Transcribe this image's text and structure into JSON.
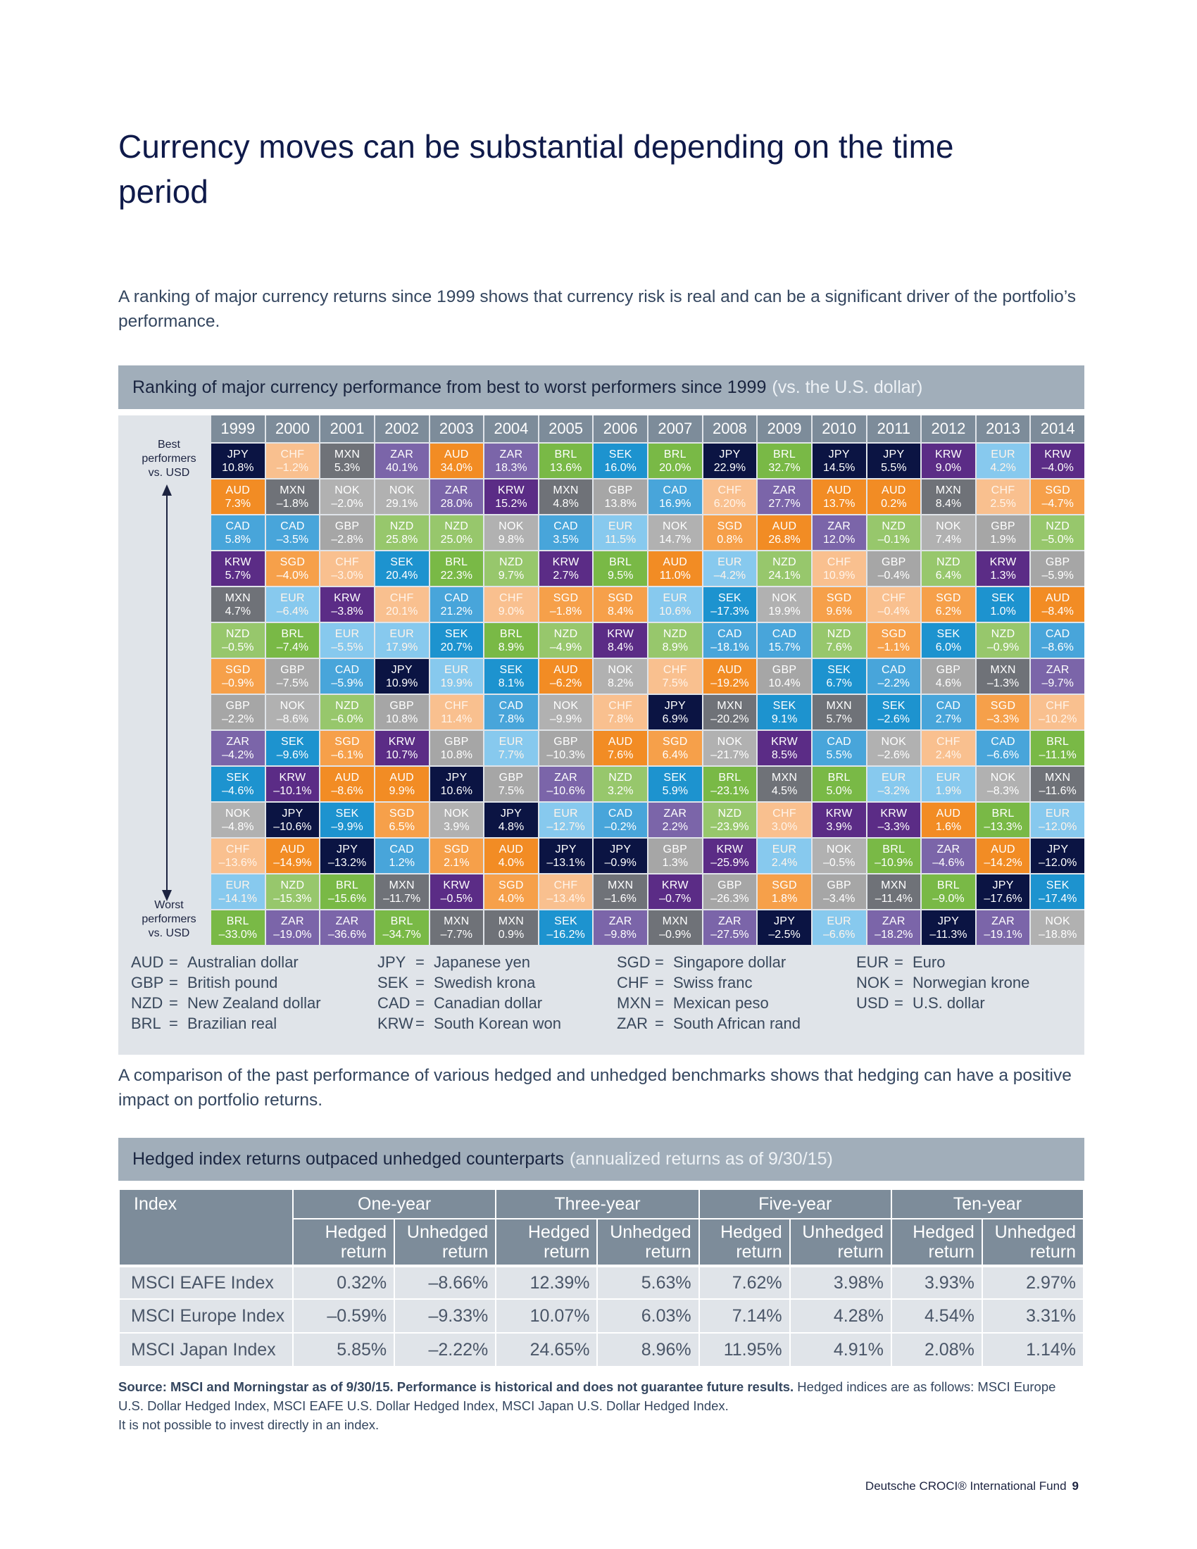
{
  "title": "Currency moves can be substantial depending on the time period",
  "intro_text": "A ranking of major currency returns since 1999 shows that currency risk is real and can be a significant driver of the portfolio’s performance.",
  "ranking": {
    "title": "Ranking of major currency performance from best to worst performers since 1999",
    "subtitle": "(vs. the U.S. dollar)",
    "best_label": "Best performers vs. USD",
    "worst_label": "Worst performers vs. USD",
    "years": [
      "1999",
      "2000",
      "2001",
      "2002",
      "2003",
      "2004",
      "2005",
      "2006",
      "2007",
      "2008",
      "2009",
      "2010",
      "2011",
      "2012",
      "2013",
      "2014"
    ],
    "colors": {
      "JPY": "#0b1443",
      "CHF": "#f9c08f",
      "MXN": "#6f7278",
      "ZAR": "#7b65a9",
      "AUD": "#f28c24",
      "BRL": "#79b946",
      "SEK": "#1d93cf",
      "KRW": "#5b2c86",
      "EUR": "#87c9ee",
      "NOK": "#b1b1b1",
      "GBP": "#a6a6a6",
      "CAD": "#48a5da",
      "NZD": "#97c76c",
      "SGD": "#f6a04a"
    },
    "light_text": [
      "CHF",
      "EUR"
    ],
    "columns": [
      [
        [
          "JPY",
          "10.8%"
        ],
        [
          "AUD",
          "7.3%"
        ],
        [
          "CAD",
          "5.8%"
        ],
        [
          "KRW",
          "5.7%"
        ],
        [
          "MXN",
          "4.7%"
        ],
        [
          "NZD",
          "–0.5%"
        ],
        [
          "SGD",
          "–0.9%"
        ],
        [
          "GBP",
          "–2.2%"
        ],
        [
          "ZAR",
          "–4.2%"
        ],
        [
          "SEK",
          "–4.6%"
        ],
        [
          "NOK",
          "–4.8%"
        ],
        [
          "CHF",
          "–13.6%"
        ],
        [
          "EUR",
          "–14.1%"
        ],
        [
          "BRL",
          "–33.0%"
        ]
      ],
      [
        [
          "CHF",
          "–1.2%"
        ],
        [
          "MXN",
          "–1.8%"
        ],
        [
          "CAD",
          "–3.5%"
        ],
        [
          "SGD",
          "–4.0%"
        ],
        [
          "EUR",
          "–6.4%"
        ],
        [
          "BRL",
          "–7.4%"
        ],
        [
          "GBP",
          "–7.5%"
        ],
        [
          "NOK",
          "–8.6%"
        ],
        [
          "SEK",
          "–9.6%"
        ],
        [
          "KRW",
          "–10.1%"
        ],
        [
          "JPY",
          "–10.6%"
        ],
        [
          "AUD",
          "–14.9%"
        ],
        [
          "NZD",
          "–15.3%"
        ],
        [
          "ZAR",
          "–19.0%"
        ]
      ],
      [
        [
          "MXN",
          "5.3%"
        ],
        [
          "NOK",
          "–2.0%"
        ],
        [
          "GBP",
          "–2.8%"
        ],
        [
          "CHF",
          "–3.0%"
        ],
        [
          "KRW",
          "–3.8%"
        ],
        [
          "EUR",
          "–5.5%"
        ],
        [
          "CAD",
          "–5.9%"
        ],
        [
          "NZD",
          "–6.0%"
        ],
        [
          "SGD",
          "–6.1%"
        ],
        [
          "AUD",
          "–8.6%"
        ],
        [
          "SEK",
          "–9.9%"
        ],
        [
          "JPY",
          "–13.2%"
        ],
        [
          "BRL",
          "–15.6%"
        ],
        [
          "ZAR",
          "–36.6%"
        ]
      ],
      [
        [
          "ZAR",
          "40.1%"
        ],
        [
          "NOK",
          "29.1%"
        ],
        [
          "NZD",
          "25.8%"
        ],
        [
          "SEK",
          "20.4%"
        ],
        [
          "CHF",
          "20.1%"
        ],
        [
          "EUR",
          "17.9%"
        ],
        [
          "JPY",
          "10.9%"
        ],
        [
          "GBP",
          "10.8%"
        ],
        [
          "KRW",
          "10.7%"
        ],
        [
          "AUD",
          "9.9%"
        ],
        [
          "SGD",
          "6.5%"
        ],
        [
          "CAD",
          "1.2%"
        ],
        [
          "MXN",
          "–11.7%"
        ],
        [
          "BRL",
          "–34.7%"
        ]
      ],
      [
        [
          "AUD",
          "34.0%"
        ],
        [
          "ZAR",
          "28.0%"
        ],
        [
          "NZD",
          "25.0%"
        ],
        [
          "BRL",
          "22.3%"
        ],
        [
          "CAD",
          "21.2%"
        ],
        [
          "SEK",
          "20.7%"
        ],
        [
          "EUR",
          "19.9%"
        ],
        [
          "CHF",
          "11.4%"
        ],
        [
          "GBP",
          "10.8%"
        ],
        [
          "JPY",
          "10.6%"
        ],
        [
          "NOK",
          "3.9%"
        ],
        [
          "SGD",
          "2.1%"
        ],
        [
          "KRW",
          "–0.5%"
        ],
        [
          "MXN",
          "–7.7%"
        ]
      ],
      [
        [
          "ZAR",
          "18.3%"
        ],
        [
          "KRW",
          "15.2%"
        ],
        [
          "NOK",
          "9.8%"
        ],
        [
          "NZD",
          "9.7%"
        ],
        [
          "CHF",
          "9.0%"
        ],
        [
          "BRL",
          "8.9%"
        ],
        [
          "SEK",
          "8.1%"
        ],
        [
          "CAD",
          "7.8%"
        ],
        [
          "EUR",
          "7.7%"
        ],
        [
          "GBP",
          "7.5%"
        ],
        [
          "JPY",
          "4.8%"
        ],
        [
          "AUD",
          "4.0%"
        ],
        [
          "SGD",
          "4.0%"
        ],
        [
          "MXN",
          "0.9%"
        ]
      ],
      [
        [
          "BRL",
          "13.6%"
        ],
        [
          "MXN",
          "4.8%"
        ],
        [
          "CAD",
          "3.5%"
        ],
        [
          "KRW",
          "2.7%"
        ],
        [
          "SGD",
          "–1.8%"
        ],
        [
          "NZD",
          "–4.9%"
        ],
        [
          "AUD",
          "–6.2%"
        ],
        [
          "NOK",
          "–9.9%"
        ],
        [
          "GBP",
          "–10.3%"
        ],
        [
          "ZAR",
          "–10.6%"
        ],
        [
          "EUR",
          "–12.7%"
        ],
        [
          "JPY",
          "–13.1%"
        ],
        [
          "CHF",
          "–13.4%"
        ],
        [
          "SEK",
          "–16.2%"
        ]
      ],
      [
        [
          "SEK",
          "16.0%"
        ],
        [
          "GBP",
          "13.8%"
        ],
        [
          "EUR",
          "11.5%"
        ],
        [
          "BRL",
          "9.5%"
        ],
        [
          "SGD",
          "8.4%"
        ],
        [
          "KRW",
          "8.4%"
        ],
        [
          "NOK",
          "8.2%"
        ],
        [
          "CHF",
          "7.8%"
        ],
        [
          "AUD",
          "7.6%"
        ],
        [
          "NZD",
          "3.2%"
        ],
        [
          "CAD",
          "–0.2%"
        ],
        [
          "JPY",
          "–0.9%"
        ],
        [
          "MXN",
          "–1.6%"
        ],
        [
          "ZAR",
          "–9.8%"
        ]
      ],
      [
        [
          "BRL",
          "20.0%"
        ],
        [
          "CAD",
          "16.9%"
        ],
        [
          "NOK",
          "14.7%"
        ],
        [
          "AUD",
          "11.0%"
        ],
        [
          "EUR",
          "10.6%"
        ],
        [
          "NZD",
          "8.9%"
        ],
        [
          "CHF",
          "7.5%"
        ],
        [
          "JPY",
          "6.9%"
        ],
        [
          "SGD",
          "6.4%"
        ],
        [
          "SEK",
          "5.9%"
        ],
        [
          "ZAR",
          "2.2%"
        ],
        [
          "GBP",
          "1.3%"
        ],
        [
          "KRW",
          "–0.7%"
        ],
        [
          "MXN",
          "–0.9%"
        ]
      ],
      [
        [
          "JPY",
          "22.9%"
        ],
        [
          "CHF",
          "6.20%"
        ],
        [
          "SGD",
          "0.8%"
        ],
        [
          "EUR",
          "–4.2%"
        ],
        [
          "SEK",
          "–17.3%"
        ],
        [
          "CAD",
          "–18.1%"
        ],
        [
          "AUD",
          "–19.2%"
        ],
        [
          "MXN",
          "–20.2%"
        ],
        [
          "NOK",
          "–21.7%"
        ],
        [
          "BRL",
          "–23.1%"
        ],
        [
          "NZD",
          "–23.9%"
        ],
        [
          "KRW",
          "–25.9%"
        ],
        [
          "GBP",
          "–26.3%"
        ],
        [
          "ZAR",
          "–27.5%"
        ]
      ],
      [
        [
          "BRL",
          "32.7%"
        ],
        [
          "ZAR",
          "27.7%"
        ],
        [
          "AUD",
          "26.8%"
        ],
        [
          "NZD",
          "24.1%"
        ],
        [
          "NOK",
          "19.9%"
        ],
        [
          "CAD",
          "15.7%"
        ],
        [
          "GBP",
          "10.4%"
        ],
        [
          "SEK",
          "9.1%"
        ],
        [
          "KRW",
          "8.5%"
        ],
        [
          "MXN",
          "4.5%"
        ],
        [
          "CHF",
          "3.0%"
        ],
        [
          "EUR",
          "2.4%"
        ],
        [
          "SGD",
          "1.8%"
        ],
        [
          "JPY",
          "–2.5%"
        ]
      ],
      [
        [
          "JPY",
          "14.5%"
        ],
        [
          "AUD",
          "13.7%"
        ],
        [
          "ZAR",
          "12.0%"
        ],
        [
          "CHF",
          "10.9%"
        ],
        [
          "SGD",
          "9.6%"
        ],
        [
          "NZD",
          "7.6%"
        ],
        [
          "SEK",
          "6.7%"
        ],
        [
          "MXN",
          "5.7%"
        ],
        [
          "CAD",
          "5.5%"
        ],
        [
          "BRL",
          "5.0%"
        ],
        [
          "KRW",
          "3.9%"
        ],
        [
          "NOK",
          "–0.5%"
        ],
        [
          "GBP",
          "–3.4%"
        ],
        [
          "EUR",
          "–6.6%"
        ]
      ],
      [
        [
          "JPY",
          "5.5%"
        ],
        [
          "AUD",
          "0.2%"
        ],
        [
          "NZD",
          "–0.1%"
        ],
        [
          "GBP",
          "–0.4%"
        ],
        [
          "CHF",
          "–0.4%"
        ],
        [
          "SGD",
          "–1.1%"
        ],
        [
          "CAD",
          "–2.2%"
        ],
        [
          "SEK",
          "–2.6%"
        ],
        [
          "NOK",
          "–2.6%"
        ],
        [
          "EUR",
          "–3.2%"
        ],
        [
          "KRW",
          "–3.3%"
        ],
        [
          "BRL",
          "–10.9%"
        ],
        [
          "MXN",
          "–11.4%"
        ],
        [
          "ZAR",
          "–18.2%"
        ]
      ],
      [
        [
          "KRW",
          "9.0%"
        ],
        [
          "MXN",
          "8.4%"
        ],
        [
          "NOK",
          "7.4%"
        ],
        [
          "NZD",
          "6.4%"
        ],
        [
          "SGD",
          "6.2%"
        ],
        [
          "SEK",
          "6.0%"
        ],
        [
          "GBP",
          "4.6%"
        ],
        [
          "CAD",
          "2.7%"
        ],
        [
          "CHF",
          "2.4%"
        ],
        [
          "EUR",
          "1.9%"
        ],
        [
          "AUD",
          "1.6%"
        ],
        [
          "ZAR",
          "–4.6%"
        ],
        [
          "BRL",
          "–9.0%"
        ],
        [
          "JPY",
          "–11.3%"
        ]
      ],
      [
        [
          "EUR",
          "4.2%"
        ],
        [
          "CHF",
          "2.5%"
        ],
        [
          "GBP",
          "1.9%"
        ],
        [
          "KRW",
          "1.3%"
        ],
        [
          "SEK",
          "1.0%"
        ],
        [
          "NZD",
          "–0.9%"
        ],
        [
          "MXN",
          "–1.3%"
        ],
        [
          "SGD",
          "–3.3%"
        ],
        [
          "CAD",
          "–6.6%"
        ],
        [
          "NOK",
          "–8.3%"
        ],
        [
          "BRL",
          "–13.3%"
        ],
        [
          "AUD",
          "–14.2%"
        ],
        [
          "JPY",
          "–17.6%"
        ],
        [
          "ZAR",
          "–19.1%"
        ]
      ],
      [
        [
          "KRW",
          "–4.0%"
        ],
        [
          "SGD",
          "–4.7%"
        ],
        [
          "NZD",
          "–5.0%"
        ],
        [
          "GBP",
          "–5.9%"
        ],
        [
          "AUD",
          "–8.4%"
        ],
        [
          "CAD",
          "–8.6%"
        ],
        [
          "ZAR",
          "–9.7%"
        ],
        [
          "CHF",
          "–10.2%"
        ],
        [
          "BRL",
          "–11.1%"
        ],
        [
          "MXN",
          "–11.6%"
        ],
        [
          "EUR",
          "–12.0%"
        ],
        [
          "JPY",
          "–12.0%"
        ],
        [
          "SEK",
          "–17.4%"
        ],
        [
          "NOK",
          "–18.8%"
        ]
      ]
    ],
    "legend": [
      [
        [
          "AUD",
          "Australian dollar"
        ],
        [
          "GBP",
          "British pound"
        ],
        [
          "NZD",
          "New Zealand dollar"
        ],
        [
          "BRL",
          "Brazilian real"
        ]
      ],
      [
        [
          "JPY",
          "Japanese yen"
        ],
        [
          "SEK",
          "Swedish krona"
        ],
        [
          "CAD",
          "Canadian dollar"
        ],
        [
          "KRW",
          "South Korean won"
        ]
      ],
      [
        [
          "SGD",
          "Singapore dollar"
        ],
        [
          "CHF",
          "Swiss franc"
        ],
        [
          "MXN",
          "Mexican peso"
        ],
        [
          "ZAR",
          "South African rand"
        ]
      ],
      [
        [
          "EUR",
          "Euro"
        ],
        [
          "NOK",
          "Norwegian krone"
        ],
        [
          "USD",
          "U.S. dollar"
        ]
      ]
    ]
  },
  "comparison_text": "A comparison of the past performance of various hedged and unhedged benchmarks shows that hedging can have a positive impact on portfolio returns.",
  "hedged_table": {
    "title": "Hedged index returns outpaced unhedged counterparts",
    "subtitle": "(annualized returns as of 9/30/15)",
    "index_header": "Index",
    "periods": [
      "One-year",
      "Three-year",
      "Five-year",
      "Ten-year"
    ],
    "hedged_label_1": "Hedged",
    "unhedged_label_1": "Unhedged",
    "return_label": "return",
    "rows": [
      {
        "name": "MSCI EAFE Index",
        "values": [
          "0.32%",
          "–8.66%",
          "12.39%",
          "5.63%",
          "7.62%",
          "3.98%",
          "3.93%",
          "2.97%"
        ]
      },
      {
        "name": "MSCI Europe Index",
        "values": [
          "–0.59%",
          "–9.33%",
          "10.07%",
          "6.03%",
          "7.14%",
          "4.28%",
          "4.54%",
          "3.31%"
        ]
      },
      {
        "name": "MSCI Japan Index",
        "values": [
          "5.85%",
          "–2.22%",
          "24.65%",
          "8.96%",
          "11.95%",
          "4.91%",
          "2.08%",
          "1.14%"
        ]
      }
    ]
  },
  "source": {
    "bold": "Source: MSCI and Morningstar as of 9/30/15. Performance is historical and does not guarantee future results.",
    "normal": " Hedged indices are as follows: MSCI Europe U.S. Dollar Hedged Index, MSCI EAFE U.S. Dollar Hedged Index, MSCI Japan U.S. Dollar Hedged Index.",
    "line2": "It is not possible to invest directly in an index."
  },
  "footer": {
    "text": "Deutsche CROCI® International Fund",
    "page": "9"
  }
}
